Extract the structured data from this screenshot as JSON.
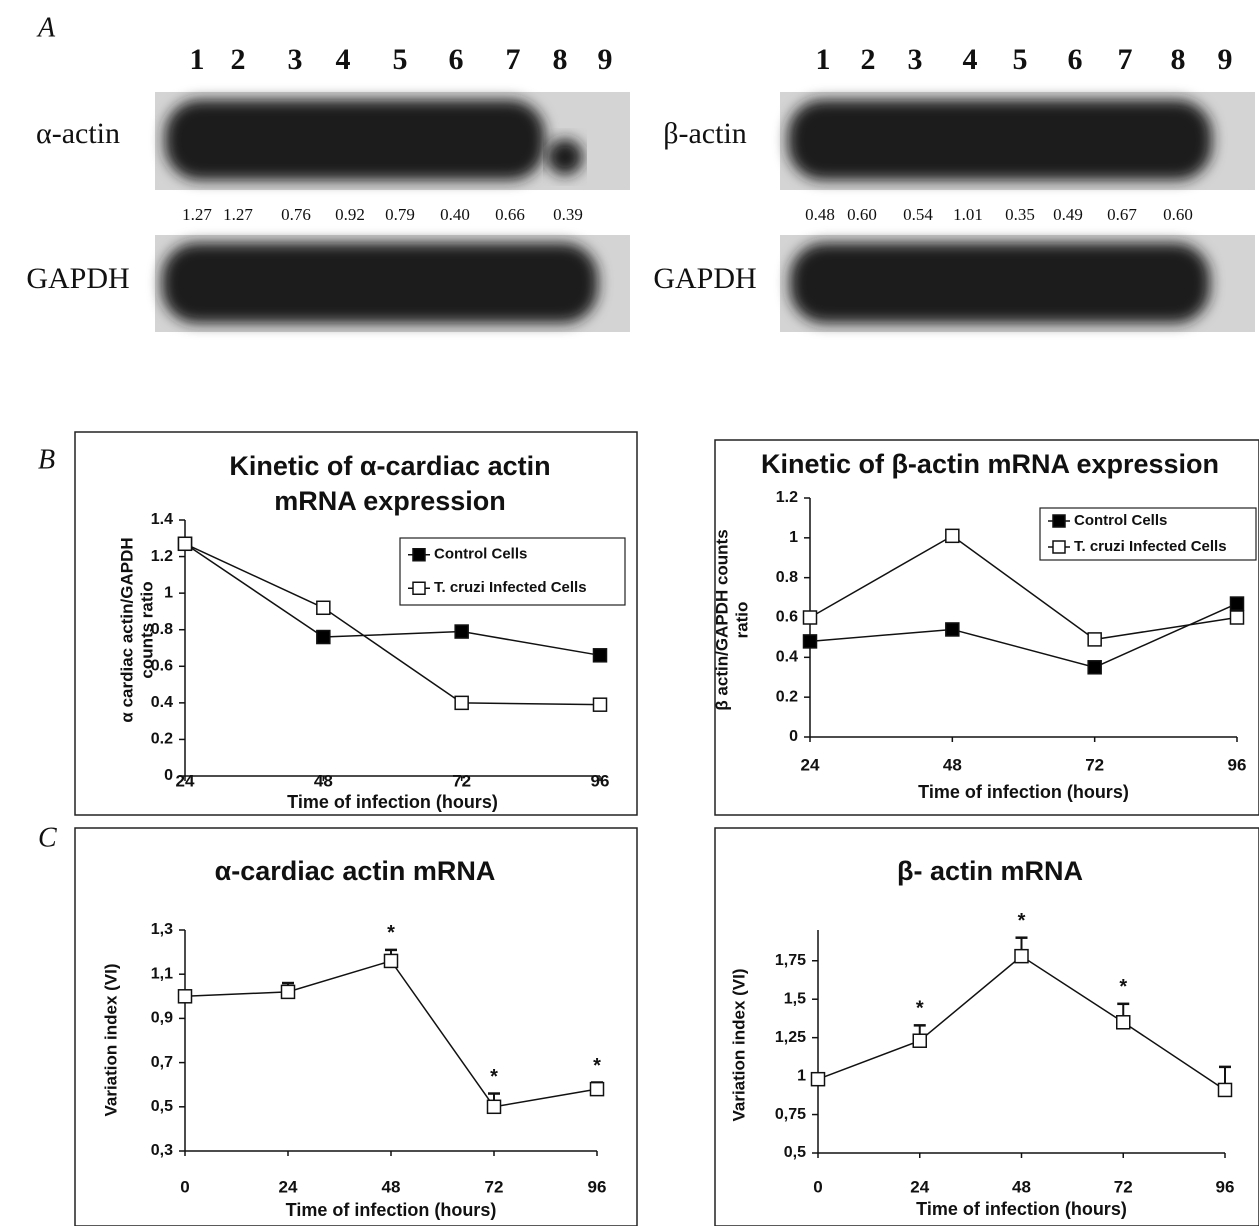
{
  "panel_labels": [
    "A",
    "B",
    "C"
  ],
  "blots": [
    {
      "lanes": [
        "1",
        "2",
        "3",
        "4",
        "5",
        "6",
        "7",
        "8",
        "9"
      ],
      "probe": "α-actin",
      "ratios": [
        "1.27",
        "1.27",
        "0.76",
        "0.92",
        "0.79",
        "0.40",
        "0.66",
        "0.39"
      ],
      "control": "GAPDH"
    },
    {
      "lanes": [
        "1",
        "2",
        "3",
        "4",
        "5",
        "6",
        "7",
        "8",
        "9"
      ],
      "probe": "β-actin",
      "ratios": [
        "0.48",
        "0.60",
        "0.54",
        "1.01",
        "0.35",
        "0.49",
        "0.67",
        "0.60"
      ],
      "control": "GAPDH"
    }
  ],
  "chart_data": [
    {
      "type": "line",
      "title": [
        "Kinetic of α-cardiac actin",
        "mRNA expression"
      ],
      "y_label": [
        "α  cardiac actin/GAPDH",
        "counts ratio"
      ],
      "x_label": "Time of infection (hours)",
      "x": [
        24,
        48,
        72,
        96
      ],
      "xlim": [
        24,
        96
      ],
      "xticks": [
        24,
        48,
        72,
        96
      ],
      "ylim": [
        0,
        1.4
      ],
      "yticks": [
        0,
        0.2,
        0.4,
        0.6,
        0.8,
        1,
        1.2,
        1.4
      ],
      "legend": "upper right",
      "series": [
        {
          "name": "Control Cells",
          "color": "#000000",
          "values": [
            1.27,
            0.76,
            0.79,
            0.66
          ]
        },
        {
          "name": "T. cruzi Infected Cells",
          "color": "#ffffff",
          "values": [
            1.27,
            0.92,
            0.4,
            0.39
          ]
        }
      ]
    },
    {
      "type": "line",
      "title": [
        "Kinetic of β-actin mRNA expression"
      ],
      "y_label": [
        "β  actin/GAPDH counts",
        "ratio"
      ],
      "x_label": "Time of infection (hours)",
      "x": [
        24,
        48,
        72,
        96
      ],
      "xlim": [
        24,
        96
      ],
      "xticks": [
        24,
        48,
        72,
        96
      ],
      "ylim": [
        0,
        1.2
      ],
      "yticks": [
        0,
        0.2,
        0.4,
        0.6,
        0.8,
        1,
        1.2
      ],
      "legend": "upper right",
      "series": [
        {
          "name": "Control Cells",
          "color": "#000000",
          "values": [
            0.48,
            0.54,
            0.35,
            0.67
          ]
        },
        {
          "name": "T. cruzi Infected Cells",
          "color": "#ffffff",
          "values": [
            0.6,
            1.01,
            0.49,
            0.6
          ]
        }
      ]
    },
    {
      "type": "line",
      "title": [
        "α-cardiac actin mRNA"
      ],
      "y_label": [
        "Variation index (VI)"
      ],
      "x_label": "Time of infection (hours)",
      "x": [
        0,
        24,
        48,
        72,
        96
      ],
      "xlim": [
        0,
        96
      ],
      "xticks": [
        0,
        24,
        48,
        72,
        96
      ],
      "ylim": [
        0.3,
        1.3
      ],
      "yticks": [
        {
          "value": 0.3,
          "label": "0,3"
        },
        {
          "value": 0.5,
          "label": "0,5"
        },
        {
          "value": 0.7,
          "label": "0,7"
        },
        {
          "value": 0.9,
          "label": "0,9"
        },
        {
          "value": 1.1,
          "label": "1,1"
        },
        {
          "value": 1.3,
          "label": "1,3"
        }
      ],
      "series": [
        {
          "name": null,
          "color": "#ffffff",
          "values": [
            1.0,
            1.02,
            1.16,
            0.5,
            0.58
          ],
          "errors": [
            0,
            0.04,
            0.05,
            0.06,
            0.03
          ],
          "significance": [
            null,
            null,
            "*",
            "*",
            "*"
          ]
        }
      ]
    },
    {
      "type": "line",
      "title": [
        "β- actin mRNA"
      ],
      "y_label": [
        "Variation index (VI)"
      ],
      "x_label": "Time of infection (hours)",
      "x": [
        0,
        24,
        48,
        72,
        96
      ],
      "xlim": [
        0,
        96
      ],
      "xticks": [
        0,
        24,
        48,
        72,
        96
      ],
      "ylim": [
        0.5,
        1.95
      ],
      "yticks": [
        {
          "value": 0.5,
          "label": "0,5"
        },
        {
          "value": 0.75,
          "label": "0,75"
        },
        {
          "value": 1,
          "label": "1"
        },
        {
          "value": 1.25,
          "label": "1,25"
        },
        {
          "value": 1.5,
          "label": "1,5"
        },
        {
          "value": 1.75,
          "label": "1,75"
        }
      ],
      "series": [
        {
          "name": null,
          "color": "#ffffff",
          "values": [
            0.98,
            1.23,
            1.78,
            1.35,
            0.91
          ],
          "errors": [
            0,
            0.1,
            0.12,
            0.12,
            0.15
          ],
          "significance": [
            null,
            "*",
            "*",
            "*",
            null
          ]
        }
      ]
    }
  ]
}
